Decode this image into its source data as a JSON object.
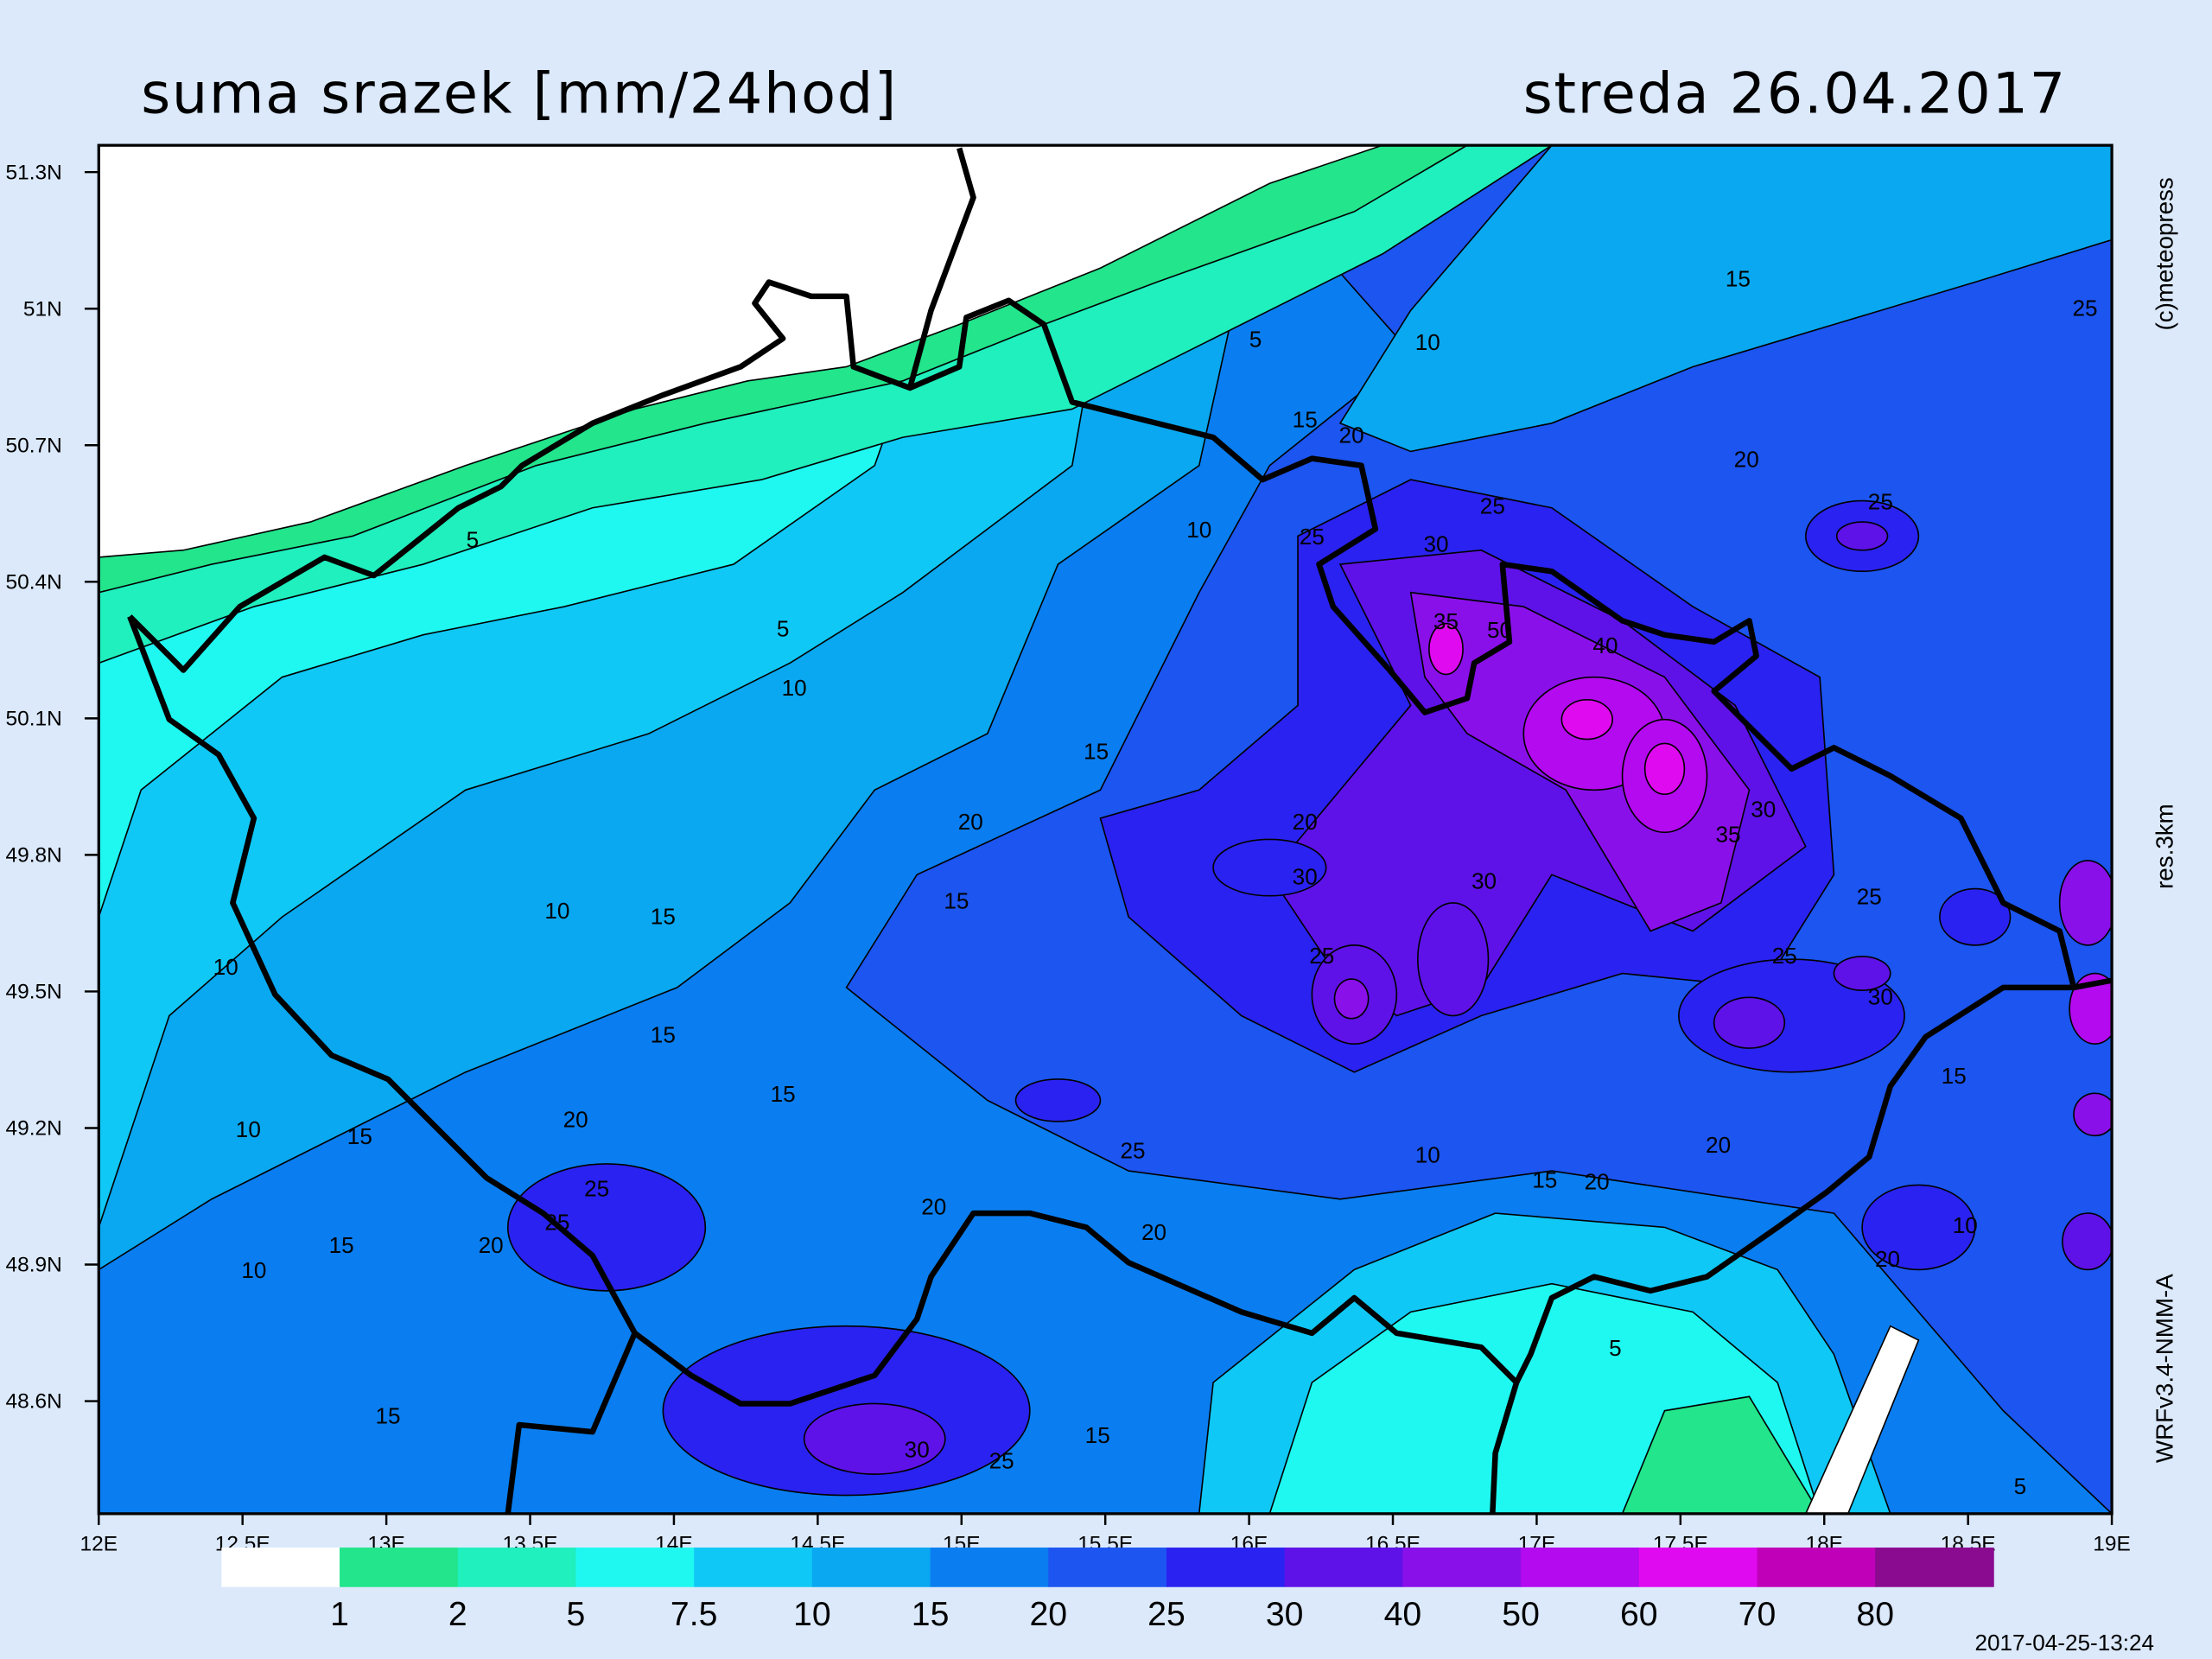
{
  "map": {
    "title": "suma srazek [mm/24hod]",
    "date": "streda 26.04.2017",
    "lat_ticks": [
      "51.3N",
      "51N",
      "50.7N",
      "50.4N",
      "50.1N",
      "49.8N",
      "49.5N",
      "49.2N",
      "48.9N",
      "48.6N"
    ],
    "lon_ticks": [
      "12E",
      "12.5E",
      "13E",
      "13.5E",
      "14E",
      "14.5E",
      "15E",
      "15.5E",
      "16E",
      "16.5E",
      "17E",
      "17.5E",
      "18E",
      "18.5E",
      "19E"
    ],
    "copyright": "(c)meteopress",
    "resolution": "res.3km",
    "model": "WRFv3.4-NMM-A",
    "timestamp": "2017-04-25-13:24",
    "colorbar": {
      "colors": [
        "#ffffff",
        "#22e58c",
        "#20efbe",
        "#1ff8f0",
        "#10c8f6",
        "#0aa8f0",
        "#0a7ef0",
        "#1c55f0",
        "#2a22f0",
        "#5e12e8",
        "#8a10ea",
        "#b40af0",
        "#e00af0",
        "#c000b8",
        "#8a0a90"
      ],
      "labels": [
        1,
        2,
        5,
        7.5,
        10,
        15,
        20,
        25,
        30,
        40,
        50,
        60,
        70,
        80
      ]
    },
    "contour_labels": [
      5,
      10,
      15,
      25,
      15,
      20,
      20,
      25,
      25,
      25,
      30,
      10,
      5,
      5,
      10,
      15,
      35,
      50,
      40,
      20,
      20,
      30,
      30,
      35,
      30,
      15,
      15,
      10,
      25,
      25,
      10,
      25,
      30,
      15,
      15,
      15,
      10,
      15,
      20,
      25,
      10,
      15,
      20,
      20,
      25,
      25,
      15,
      20,
      20,
      20,
      10,
      10,
      20,
      5,
      15,
      15,
      30,
      25,
      5
    ]
  }
}
